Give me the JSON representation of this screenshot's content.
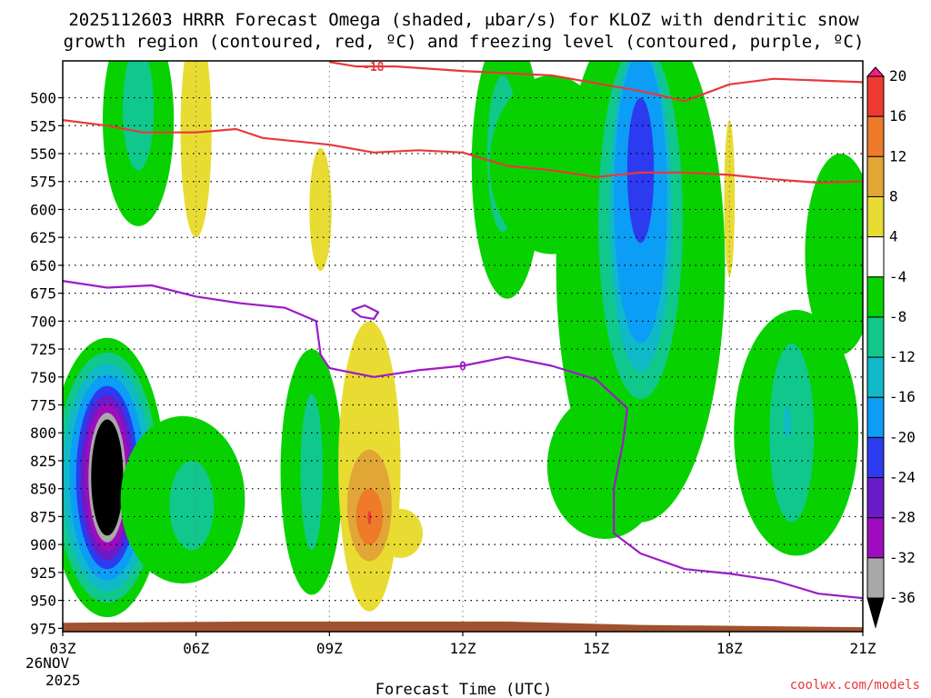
{
  "chart_data": {
    "type": "contour",
    "title_line1": "2025112603 HRRR Forecast Omega (shaded, μbar/s) for KLOZ with dendritic snow",
    "title_line2": "growth region (contoured, red, ºC) and freezing level (contoured, purple, ºC)",
    "xlabel": "Forecast Time (UTC)",
    "x_ticks": [
      {
        "hour": 0,
        "label": "03Z"
      },
      {
        "hour": 3,
        "label": "06Z"
      },
      {
        "hour": 6,
        "label": "09Z"
      },
      {
        "hour": 9,
        "label": "12Z"
      },
      {
        "hour": 12,
        "label": "15Z"
      },
      {
        "hour": 15,
        "label": "18Z"
      },
      {
        "hour": 18,
        "label": "21Z"
      }
    ],
    "date_label_1": "26NOV",
    "date_label_2": "2025",
    "y_ticks": [
      500,
      525,
      550,
      575,
      600,
      625,
      650,
      675,
      700,
      725,
      750,
      775,
      800,
      825,
      850,
      875,
      900,
      925,
      950,
      975
    ],
    "ylim": [
      467,
      978
    ],
    "colorbar": {
      "labels": [
        "20",
        "16",
        "12",
        "8",
        "4",
        "-4",
        "-8",
        "-12",
        "-16",
        "-20",
        "-24",
        "-28",
        "-32",
        "-36"
      ],
      "bins": [
        {
          "color": "#f31d8c"
        },
        {
          "color": "#ee3a33"
        },
        {
          "color": "#ef7a2a"
        },
        {
          "color": "#e1a635"
        },
        {
          "color": "#e8dc33"
        },
        {
          "color": "#ffffff"
        },
        {
          "color": "#07d200"
        },
        {
          "color": "#10c88c"
        },
        {
          "color": "#10b9c8"
        },
        {
          "color": "#0c9ef6"
        },
        {
          "color": "#2c3bf0"
        },
        {
          "color": "#6a1cc8"
        },
        {
          "color": "#9f0bbe"
        },
        {
          "color": "#a8a8a8"
        },
        {
          "color": "#000000"
        }
      ]
    },
    "omega_regions": [
      {
        "name": "region-strong-ascent-03z",
        "value": -36,
        "color": "#07d200",
        "cx": 1.0,
        "cy": 840,
        "rx": 1.3,
        "ry": 125
      },
      {
        "name": "region-strong-ascent-03z",
        "value": -36,
        "color": "#10c88c",
        "cx": 1.0,
        "cy": 840,
        "rx": 1.15,
        "ry": 112
      },
      {
        "name": "region-strong-ascent-03z",
        "value": -36,
        "color": "#10b9c8",
        "cx": 1.0,
        "cy": 840,
        "rx": 1.0,
        "ry": 102
      },
      {
        "name": "region-strong-ascent-03z",
        "value": -36,
        "color": "#0c9ef6",
        "cx": 1.0,
        "cy": 840,
        "rx": 0.85,
        "ry": 92
      },
      {
        "name": "region-strong-ascent-03z",
        "value": -36,
        "color": "#2c3bf0",
        "cx": 1.0,
        "cy": 840,
        "rx": 0.7,
        "ry": 82
      },
      {
        "name": "region-strong-ascent-03z",
        "value": -36,
        "color": "#6a1cc8",
        "cx": 1.0,
        "cy": 840,
        "rx": 0.6,
        "ry": 74
      },
      {
        "name": "region-strong-ascent-03z",
        "value": -36,
        "color": "#9f0bbe",
        "cx": 1.0,
        "cy": 840,
        "rx": 0.5,
        "ry": 66
      },
      {
        "name": "region-strong-ascent-03z",
        "value": -36,
        "color": "#a8a8a8",
        "cx": 1.0,
        "cy": 840,
        "rx": 0.42,
        "ry": 58
      },
      {
        "name": "region-strong-ascent-03z",
        "value": -36,
        "color": "#000000",
        "cx": 1.0,
        "cy": 840,
        "rx": 0.36,
        "ry": 52
      },
      {
        "name": "region-ascent-0430z",
        "value": -8,
        "color": "#07d200",
        "cx": 2.7,
        "cy": 860,
        "rx": 1.4,
        "ry": 75
      },
      {
        "name": "region-ascent-0430z",
        "value": -8,
        "color": "#10c88c",
        "cx": 2.9,
        "cy": 865,
        "rx": 0.5,
        "ry": 40
      },
      {
        "name": "region-ascent-0400z",
        "value": -8,
        "color": "#07d200",
        "cx": 1.7,
        "cy": 520,
        "rx": 0.8,
        "ry": 95
      },
      {
        "name": "region-ascent-0400z",
        "value": -8,
        "color": "#10c88c",
        "cx": 1.7,
        "cy": 510,
        "rx": 0.35,
        "ry": 55
      },
      {
        "name": "region-ascent-0830z",
        "value": -12,
        "color": "#07d200",
        "cx": 5.6,
        "cy": 835,
        "rx": 0.7,
        "ry": 110
      },
      {
        "name": "region-ascent-0830z",
        "value": -12,
        "color": "#10c88c",
        "cx": 5.6,
        "cy": 835,
        "rx": 0.25,
        "ry": 70
      },
      {
        "name": "region-ascent-10z",
        "value": -12,
        "color": "#07d200",
        "cx": 10.0,
        "cy": 560,
        "rx": 0.8,
        "ry": 120
      },
      {
        "name": "region-ascent-10z",
        "value": -12,
        "color": "#10c88c",
        "cx": 9.9,
        "cy": 550,
        "rx": 0.35,
        "ry": 70
      },
      {
        "name": "region-ascent-1230z",
        "value": -8,
        "color": "#07d200",
        "cx": 11.0,
        "cy": 560,
        "rx": 1.4,
        "ry": 80
      },
      {
        "name": "region-ascent-13z-lower",
        "value": -8,
        "color": "#07d200",
        "cx": 12.2,
        "cy": 830,
        "rx": 1.3,
        "ry": 65
      },
      {
        "name": "region-ascent-1930z",
        "value": -8,
        "color": "#07d200",
        "cx": 16.5,
        "cy": 800,
        "rx": 1.4,
        "ry": 110
      },
      {
        "name": "region-ascent-1930z",
        "value": -12,
        "color": "#10c88c",
        "cx": 16.4,
        "cy": 800,
        "rx": 0.5,
        "ry": 80
      },
      {
        "name": "region-ascent-1930z",
        "value": -16,
        "color": "#10b9c8",
        "cx": 16.3,
        "cy": 790,
        "rx": 0.08,
        "ry": 15
      },
      {
        "name": "region-ascent-20z-upper",
        "value": -8,
        "color": "#07d200",
        "cx": 17.5,
        "cy": 640,
        "rx": 0.8,
        "ry": 90
      },
      {
        "name": "region-max-ascent-16z",
        "value": -24,
        "color": "#07d200",
        "cx": 13.0,
        "cy": 650,
        "rx": 1.9,
        "ry": 230
      },
      {
        "name": "region-max-ascent-16z",
        "value": -24,
        "color": "#10c88c",
        "cx": 13.0,
        "cy": 610,
        "rx": 0.95,
        "ry": 160
      },
      {
        "name": "region-max-ascent-16z",
        "value": -24,
        "color": "#10b9c8",
        "cx": 13.0,
        "cy": 600,
        "rx": 0.7,
        "ry": 145
      },
      {
        "name": "region-max-ascent-16z",
        "value": -24,
        "color": "#0c9ef6",
        "cx": 13.0,
        "cy": 590,
        "rx": 0.6,
        "ry": 130
      },
      {
        "name": "region-max-ascent-16z",
        "value": -24,
        "color": "#2c3bf0",
        "cx": 13.0,
        "cy": 565,
        "rx": 0.3,
        "ry": 65
      },
      {
        "name": "region-descent-0430z",
        "value": 4,
        "color": "#e8dc33",
        "cx": 3.0,
        "cy": 530,
        "rx": 0.35,
        "ry": 95
      },
      {
        "name": "region-descent-0930z",
        "value": 4,
        "color": "#e8dc33",
        "cx": 5.8,
        "cy": 600,
        "rx": 0.25,
        "ry": 55
      },
      {
        "name": "region-descent-10z",
        "value": 8,
        "color": "#e8dc33",
        "cx": 6.9,
        "cy": 830,
        "rx": 0.7,
        "ry": 130
      },
      {
        "name": "region-descent-10z",
        "value": 8,
        "color": "#e8dc33",
        "cx": 7.6,
        "cy": 890,
        "rx": 0.5,
        "ry": 22
      },
      {
        "name": "region-descent-10z",
        "value": 12,
        "color": "#e1a635",
        "cx": 6.9,
        "cy": 865,
        "rx": 0.5,
        "ry": 50
      },
      {
        "name": "region-descent-10z",
        "value": 16,
        "color": "#ef7a2a",
        "cx": 6.9,
        "cy": 875,
        "rx": 0.3,
        "ry": 25
      },
      {
        "name": "region-descent-10z",
        "value": 20,
        "color": "#ee3a33",
        "cx": 6.9,
        "cy": 876,
        "rx": 0.04,
        "ry": 6
      },
      {
        "name": "region-descent-18z",
        "value": 4,
        "color": "#e8dc33",
        "cx": 15.0,
        "cy": 590,
        "rx": 0.12,
        "ry": 70
      }
    ],
    "dgz_label": "-18",
    "dgz_contours": [
      {
        "value": -18,
        "points": [
          [
            6.0,
            468
          ],
          [
            6.6,
            472
          ],
          [
            7.5,
            472
          ],
          [
            9.0,
            476
          ],
          [
            11.0,
            480
          ],
          [
            13.0,
            494
          ],
          [
            14.0,
            503
          ],
          [
            15.0,
            488
          ],
          [
            16.0,
            483
          ],
          [
            18.0,
            486
          ]
        ]
      },
      {
        "value": -12,
        "points": [
          [
            0.0,
            520
          ],
          [
            1.0,
            525
          ],
          [
            1.8,
            531
          ],
          [
            3.0,
            531
          ],
          [
            3.9,
            528
          ],
          [
            4.5,
            536
          ],
          [
            6.0,
            542
          ],
          [
            7.0,
            549
          ],
          [
            8.0,
            547
          ],
          [
            9.0,
            549
          ],
          [
            10.0,
            561
          ],
          [
            11.0,
            565
          ],
          [
            12.0,
            571
          ],
          [
            13.0,
            567
          ],
          [
            14.0,
            567
          ],
          [
            15.0,
            569
          ],
          [
            16.0,
            573
          ],
          [
            17.0,
            576
          ],
          [
            18.0,
            575
          ]
        ]
      }
    ],
    "freezing_label": "0",
    "freezing_level": {
      "value": 0,
      "points": [
        [
          0.0,
          664
        ],
        [
          1.0,
          670
        ],
        [
          2.0,
          668
        ],
        [
          3.0,
          678
        ],
        [
          4.0,
          684
        ],
        [
          5.0,
          688
        ],
        [
          5.7,
          700
        ],
        [
          5.8,
          730
        ],
        [
          6.0,
          742
        ],
        [
          7.0,
          750
        ],
        [
          8.0,
          744
        ],
        [
          9.0,
          740
        ],
        [
          10.0,
          732
        ],
        [
          11.0,
          740
        ],
        [
          12.0,
          752
        ],
        [
          12.7,
          778
        ],
        [
          12.6,
          810
        ],
        [
          12.4,
          850
        ],
        [
          12.4,
          890
        ],
        [
          13.0,
          908
        ],
        [
          14.0,
          922
        ],
        [
          15.0,
          926
        ],
        [
          16.0,
          932
        ],
        [
          17.0,
          944
        ],
        [
          18.0,
          948
        ]
      ]
    },
    "freezing_island": {
      "value": 0,
      "points": [
        [
          6.5,
          690
        ],
        [
          6.8,
          686
        ],
        [
          7.1,
          692
        ],
        [
          7.0,
          698
        ],
        [
          6.7,
          696
        ]
      ]
    },
    "terrain_color": "#a0522d",
    "credit": "coolwx.com/models"
  }
}
